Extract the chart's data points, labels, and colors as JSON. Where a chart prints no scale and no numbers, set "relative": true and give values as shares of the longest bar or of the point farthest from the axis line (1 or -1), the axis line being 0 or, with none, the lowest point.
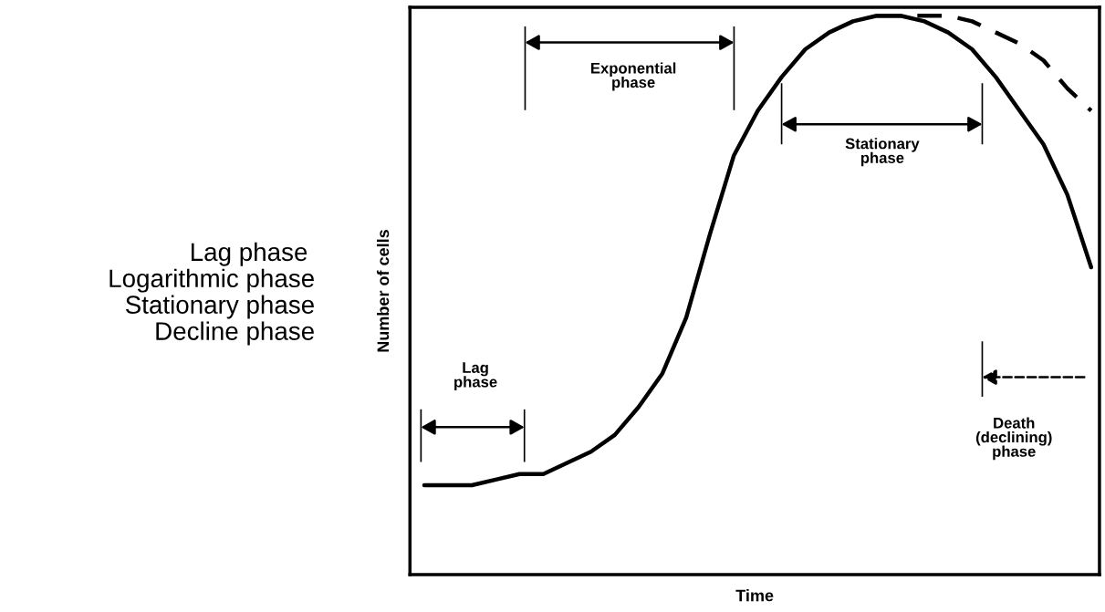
{
  "chart_data": {
    "type": "line",
    "relative": true,
    "xlabel": "Time",
    "ylabel": "Number of cells",
    "categories": [
      null,
      null,
      null,
      null,
      null,
      null,
      null,
      null,
      null,
      null,
      null,
      null,
      null,
      null,
      null,
      null,
      null,
      null,
      null,
      null,
      null,
      null,
      null,
      null,
      null,
      null,
      null,
      null,
      null
    ],
    "series": [
      {
        "color": "#000000",
        "line_style": "solid",
        "values": [
          0.16,
          0.16,
          0.16,
          0.17,
          0.18,
          0.18,
          0.2,
          0.22,
          0.25,
          0.3,
          0.36,
          0.46,
          0.61,
          0.75,
          0.83,
          0.89,
          0.94,
          0.97,
          0.99,
          1,
          1,
          0.99,
          0.97,
          0.94,
          0.89,
          0.83,
          0.77,
          0.68,
          0.55
        ]
      },
      {
        "color": "#000000",
        "line_style": "dashed",
        "values": [
          null,
          null,
          null,
          null,
          null,
          null,
          null,
          null,
          null,
          null,
          null,
          null,
          null,
          null,
          null,
          null,
          null,
          null,
          null,
          1,
          1,
          1,
          1,
          0.99,
          0.97,
          0.95,
          0.92,
          0.87,
          0.83
        ]
      }
    ],
    "annotations": [
      "Lag\nphase",
      "Exponential\nphase",
      "Stationary\nphase",
      "Death\n(declining)\nphase",
      "Lag phase \nLogarithmic phase\nStationary phase\nDecline phase"
    ],
    "legend": false,
    "grid": false,
    "marker": "none"
  }
}
